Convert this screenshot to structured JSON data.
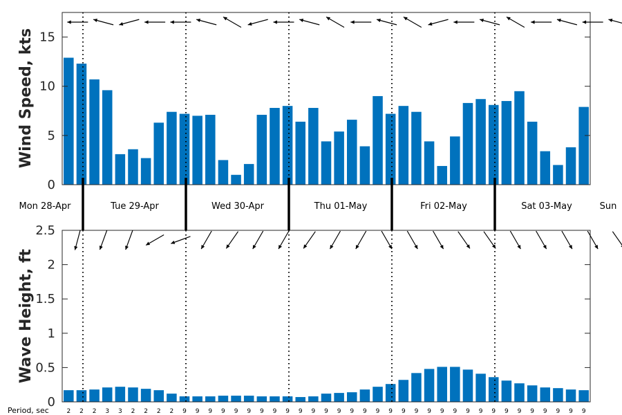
{
  "chart_data": [
    {
      "type": "bar",
      "ylabel": "Wind Speed, kts",
      "ylim": [
        0,
        17.5
      ],
      "yticks": [
        0,
        5,
        10,
        15
      ],
      "color": "#0072BD",
      "values": [
        12.9,
        12.3,
        10.7,
        9.6,
        3.1,
        3.6,
        2.7,
        6.3,
        7.4,
        7.2,
        7.0,
        7.1,
        2.5,
        1.0,
        2.1,
        7.1,
        7.8,
        8.0,
        6.4,
        7.8,
        4.4,
        5.4,
        6.6,
        3.9,
        9.0,
        7.2,
        8.0,
        7.4,
        4.4,
        1.9,
        4.9,
        8.3,
        8.7,
        8.1,
        8.5,
        9.5,
        6.4,
        3.4,
        2.0,
        3.8,
        7.9
      ],
      "direction_arrows_deg": [
        270,
        285,
        255,
        270,
        270,
        285,
        300,
        255,
        270,
        285,
        300,
        270,
        285,
        300,
        255,
        270,
        285,
        300,
        270,
        285,
        270,
        285,
        300
      ]
    },
    {
      "type": "bar",
      "ylabel": "Wave Height, ft",
      "ylim": [
        0,
        2.5
      ],
      "yticks": [
        0,
        0.5,
        1,
        1.5,
        2,
        2.5
      ],
      "ytick_labels": [
        "0",
        "0.5",
        "1",
        "1.5",
        "2",
        "2.5"
      ],
      "color": "#0072BD",
      "values": [
        0.17,
        0.17,
        0.18,
        0.21,
        0.22,
        0.21,
        0.19,
        0.17,
        0.12,
        0.08,
        0.08,
        0.08,
        0.09,
        0.09,
        0.09,
        0.08,
        0.08,
        0.08,
        0.07,
        0.08,
        0.12,
        0.13,
        0.14,
        0.18,
        0.22,
        0.26,
        0.32,
        0.42,
        0.48,
        0.51,
        0.51,
        0.47,
        0.41,
        0.36,
        0.31,
        0.27,
        0.24,
        0.21,
        0.2,
        0.18,
        0.17
      ],
      "period_label": "Period, sec",
      "periods": [
        "2",
        "2",
        "2",
        "3",
        "3",
        "2",
        "2",
        "2",
        "2",
        "9",
        "9",
        "9",
        "9",
        "9",
        "9",
        "9",
        "9",
        "9",
        "9",
        "9",
        "9",
        "9",
        "9",
        "9",
        "9",
        "9",
        "9",
        "9",
        "9",
        "9",
        "9",
        "9",
        "9",
        "9",
        "9",
        "9",
        "9",
        "9",
        "9",
        "9",
        "9"
      ],
      "direction_arrows_deg": [
        195,
        200,
        200,
        240,
        250,
        210,
        215,
        210,
        210,
        215,
        210,
        210,
        150,
        150,
        150,
        145,
        145,
        150,
        150,
        150,
        150,
        145,
        150
      ]
    }
  ],
  "days": [
    "Mon 28-Apr",
    "Tue 29-Apr",
    "Wed 30-Apr",
    "Thu 01-May",
    "Fri 02-May",
    "Sat 03-May",
    "Sun"
  ]
}
